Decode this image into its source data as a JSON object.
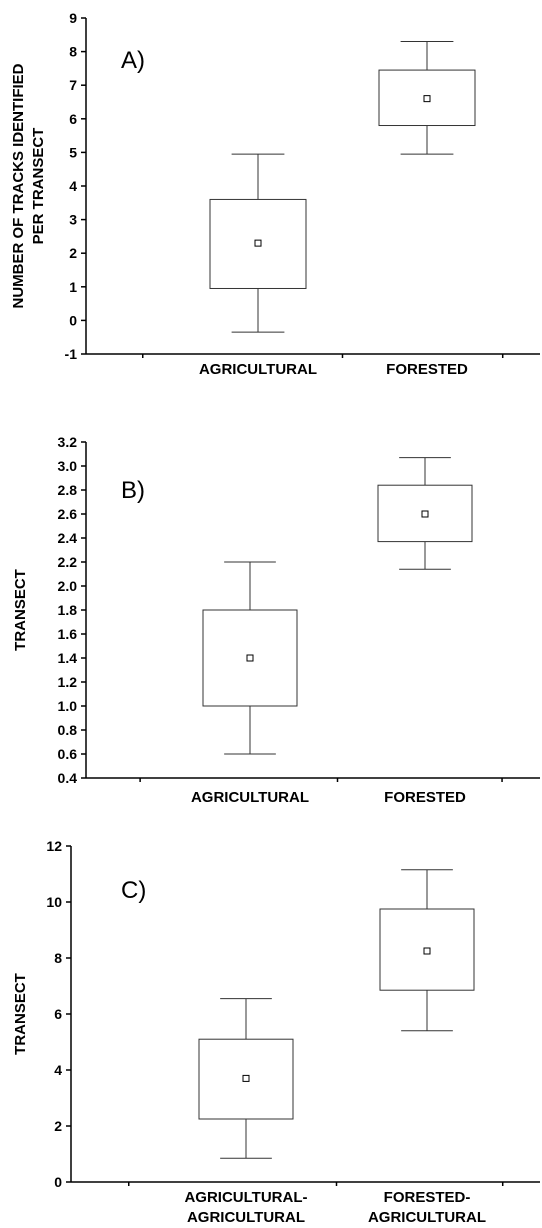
{
  "chart_data": [
    {
      "type": "box",
      "panel_label": "A)",
      "ylabel_lines": [
        "NUMBER OF TRACKS IDENTIFIED",
        "PER TRANSECT"
      ],
      "ylim": [
        -1,
        9
      ],
      "yticks": [
        -1,
        0,
        1,
        2,
        3,
        4,
        5,
        6,
        7,
        8,
        9
      ],
      "ytick_labels": [
        "-1",
        "0",
        "1",
        "2",
        "3",
        "4",
        "5",
        "6",
        "7",
        "8",
        "9"
      ],
      "categories": [
        {
          "lines": [
            "AGRICULTURAL"
          ]
        },
        {
          "lines": [
            "FORESTED"
          ]
        }
      ],
      "boxes": [
        {
          "whisker_low": -0.35,
          "box_low": 0.95,
          "mean": 2.3,
          "box_high": 3.6,
          "whisker_high": 4.95
        },
        {
          "whisker_low": 4.95,
          "box_low": 5.8,
          "mean": 6.6,
          "box_high": 7.45,
          "whisker_high": 8.3
        }
      ]
    },
    {
      "type": "box",
      "panel_label": "B)",
      "ylabel_lines": [
        "TRANSECT"
      ],
      "ylim": [
        0.4,
        3.2
      ],
      "yticks": [
        0.4,
        0.6,
        0.8,
        1.0,
        1.2,
        1.4,
        1.6,
        1.8,
        2.0,
        2.2,
        2.4,
        2.6,
        2.8,
        3.0,
        3.2
      ],
      "ytick_labels": [
        "0.4",
        "0.6",
        "0.8",
        "1.0",
        "1.2",
        "1.4",
        "1.6",
        "1.8",
        "2.0",
        "2.2",
        "2.4",
        "2.6",
        "2.8",
        "3.0",
        "3.2"
      ],
      "categories": [
        {
          "lines": [
            "AGRICULTURAL"
          ]
        },
        {
          "lines": [
            "FORESTED"
          ]
        }
      ],
      "boxes": [
        {
          "whisker_low": 0.6,
          "box_low": 1.0,
          "mean": 1.4,
          "box_high": 1.8,
          "whisker_high": 2.2
        },
        {
          "whisker_low": 2.14,
          "box_low": 2.37,
          "mean": 2.6,
          "box_high": 2.84,
          "whisker_high": 3.07
        }
      ]
    },
    {
      "type": "box",
      "panel_label": "C)",
      "ylabel_lines": [
        "TRANSECT"
      ],
      "ylim": [
        0,
        12
      ],
      "yticks": [
        0,
        2,
        4,
        6,
        8,
        10,
        12
      ],
      "ytick_labels": [
        "0",
        "2",
        "4",
        "6",
        "8",
        "10",
        "12"
      ],
      "categories": [
        {
          "lines": [
            "AGRICULTURAL-",
            "AGRICULTURAL"
          ]
        },
        {
          "lines": [
            "FORESTED-",
            "AGRICULTURAL"
          ]
        }
      ],
      "boxes": [
        {
          "whisker_low": 0.85,
          "box_low": 2.25,
          "mean": 3.7,
          "box_high": 5.1,
          "whisker_high": 6.55
        },
        {
          "whisker_low": 5.4,
          "box_low": 6.85,
          "mean": 8.25,
          "box_high": 9.75,
          "whisker_high": 11.15
        }
      ]
    }
  ]
}
